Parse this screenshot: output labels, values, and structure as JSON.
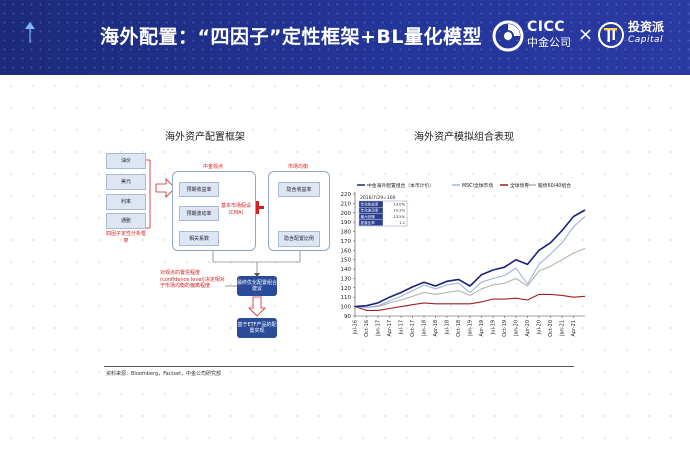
{
  "header": {
    "title": "海外配置：“四因子”定性框架+BL量化模型",
    "brand_cicc_en": "CICC",
    "brand_cicc_cn": "中金公司",
    "brand_sep": "×",
    "brand_tzp_cn": "投资派",
    "brand_tzp_en": "Capital",
    "colors": {
      "banner": "#243598",
      "red": "#d32020",
      "navy": "#1a237e"
    }
  },
  "left_panel": {
    "title": "海外资产配置框架",
    "factors": [
      "油价",
      "美元",
      "利率",
      "通胀"
    ],
    "factors_caption": "四因子定性分析框架",
    "view_box_title": "中金观点",
    "view_items": [
      "预期收益率",
      "预期波动率",
      "相关系数"
    ],
    "view_note": "基本市场假设(CMA)",
    "market_box_title": "市场均衡",
    "market_items": [
      "隐含收益率",
      "隐含配置比例"
    ],
    "confidence_note": "对观点的置信程度(confidence level)决定相对于市场均衡的偏离程度",
    "result_box": "最终优化配置组合建议",
    "etf_box": "基于ETF产品的配置实现",
    "source": "资料来源：Bloomberg，Factset，中金公司研究部"
  },
  "right_panel": {
    "title": "海外资产模拟组合表现",
    "stats_title": "2016/7/29=100",
    "stats_rows": [
      [
        "年化收益率",
        "13.0%"
      ],
      [
        "年化波动率",
        "10.2%"
      ],
      [
        "最大回撤",
        "-13.5%"
      ],
      [
        "夏普比率",
        "1.1"
      ]
    ],
    "series_labels": [
      "中金海外配置组合（本币计价）",
      "MSCI全球市场",
      "全球债券",
      "股债60/40组合"
    ]
  },
  "chart_data": {
    "type": "line",
    "title": "",
    "xlabel": "",
    "ylabel": "",
    "ylim": [
      90,
      220
    ],
    "yticks": [
      90,
      100,
      110,
      120,
      130,
      140,
      150,
      160,
      170,
      180,
      190,
      200,
      210,
      220
    ],
    "x": [
      "Jul-16",
      "Oct-16",
      "Jan-17",
      "Apr-17",
      "Jul-17",
      "Oct-17",
      "Jan-18",
      "Apr-18",
      "Jul-18",
      "Oct-18",
      "Jan-19",
      "Apr-19",
      "Jul-19",
      "Oct-19",
      "Jan-20",
      "Apr-20",
      "Jul-20",
      "Oct-20",
      "Jan-21",
      "Apr-21",
      "Jun-21"
    ],
    "xticks_shown": [
      "Jul-16",
      "Oct-16",
      "Jan-17",
      "Apr-17",
      "Jul-17",
      "Oct-17",
      "Jan-18",
      "Apr-18",
      "Jul-18",
      "Oct-18",
      "Jan-19",
      "Apr-19",
      "Jul-19",
      "Oct-19",
      "Jan-20",
      "Apr-20",
      "Jul-20",
      "Oct-20",
      "Jan-21",
      "Apr-21"
    ],
    "legend_position": "top",
    "grid": false,
    "series": [
      {
        "name": "中金海外配置组合（本币计价）",
        "color": "#1a237e",
        "values": [
          100,
          101,
          104,
          110,
          115,
          121,
          126,
          122,
          127,
          129,
          122,
          134,
          139,
          142,
          150,
          145,
          160,
          168,
          181,
          196,
          203
        ]
      },
      {
        "name": "MSCI全球市场",
        "color": "#9fb3dc",
        "values": [
          100,
          99,
          101,
          106,
          111,
          117,
          123,
          119,
          123,
          125,
          115,
          126,
          130,
          133,
          141,
          124,
          145,
          156,
          168,
          185,
          196
        ]
      },
      {
        "name": "全球债券",
        "color": "#a01f23",
        "values": [
          100,
          96,
          96,
          98,
          100,
          102,
          104,
          103,
          103,
          103,
          103,
          105,
          108,
          108,
          109,
          107,
          113,
          113,
          112,
          110,
          111
        ]
      },
      {
        "name": "股债60/40组合",
        "color": "#b3b3b3",
        "values": [
          100,
          99,
          100,
          104,
          107,
          111,
          115,
          113,
          115,
          117,
          112,
          119,
          123,
          125,
          130,
          122,
          138,
          143,
          150,
          157,
          162
        ]
      }
    ]
  }
}
